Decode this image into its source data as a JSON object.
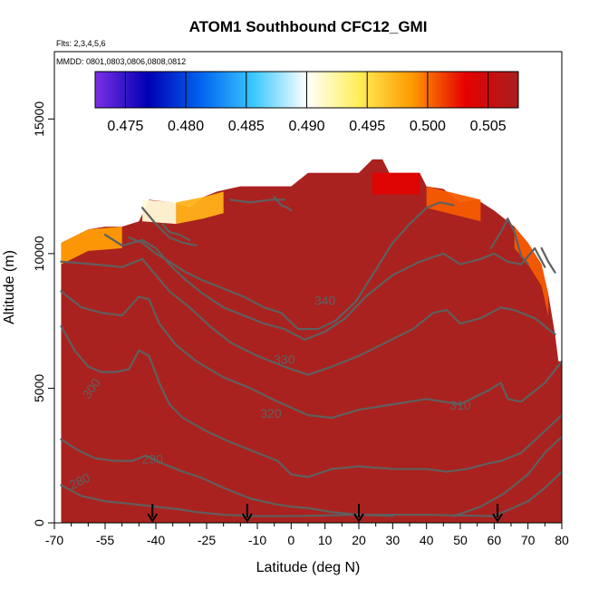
{
  "chart_data": {
    "type": "heatmap",
    "title": "ATOM1 Southbound CFC12_GMI",
    "notes": [
      "Flts: 2,3,4,5,6",
      "MMDD: 0801,0803,0806,0808,0812"
    ],
    "xlabel": "Latitude (deg N)",
    "ylabel": "Altitude (m)",
    "xlim": [
      -70,
      80
    ],
    "ylim": [
      0,
      17500
    ],
    "x_ticks": [
      -70,
      -55,
      -40,
      -25,
      -10,
      0,
      10,
      20,
      30,
      40,
      50,
      60,
      70,
      80
    ],
    "x_minor_ticks": [
      -65,
      -60,
      -50,
      -45,
      -35,
      -30,
      -20,
      -15,
      -5,
      5,
      15,
      25,
      35,
      45,
      55,
      65,
      75
    ],
    "y_ticks": [
      0,
      5000,
      10000,
      15000
    ],
    "colorbar": {
      "min": 0.4725,
      "max": 0.5075,
      "ticks": [
        0.475,
        0.48,
        0.485,
        0.49,
        0.495,
        0.5,
        0.505
      ],
      "tick_labels": [
        "0.475",
        "0.480",
        "0.485",
        "0.490",
        "0.495",
        "0.500",
        "0.505"
      ],
      "colors": [
        "#7b2fe6",
        "#0000b4",
        "#0064f0",
        "#3cc8ff",
        "#ffffff",
        "#ffee55",
        "#ff9900",
        "#e60000",
        "#a81e1e"
      ]
    },
    "field_color": "#a9221f",
    "data_extent": {
      "lat": [
        -68,
        80
      ],
      "top_altitude": [
        [
          -68,
          10400
        ],
        [
          -60,
          10900
        ],
        [
          -55,
          11000
        ],
        [
          -50,
          11000
        ],
        [
          -45,
          11200
        ],
        [
          -42,
          12000
        ],
        [
          -35,
          11900
        ],
        [
          -30,
          11700
        ],
        [
          -26,
          12100
        ],
        [
          -22,
          12300
        ],
        [
          -15,
          12500
        ],
        [
          -5,
          12500
        ],
        [
          0,
          12500
        ],
        [
          5,
          13000
        ],
        [
          20,
          13000
        ],
        [
          24,
          13500
        ],
        [
          27,
          13500
        ],
        [
          29,
          13000
        ],
        [
          38,
          13000
        ],
        [
          40,
          12500
        ],
        [
          45,
          12400
        ],
        [
          50,
          11900
        ],
        [
          55,
          12000
        ],
        [
          60,
          11600
        ],
        [
          66,
          11000
        ],
        [
          70,
          10400
        ],
        [
          74,
          9600
        ],
        [
          76,
          8500
        ],
        [
          78,
          7000
        ],
        [
          79,
          6000
        ],
        [
          80,
          6000
        ]
      ],
      "edge_bands": [
        {
          "lat_from": -68,
          "lat_to": -50,
          "top": [
            [
              -68,
              10400
            ],
            [
              -60,
              10900
            ],
            [
              -50,
              11000
            ]
          ],
          "value": 0.4985
        },
        {
          "lat_from": -44,
          "lat_to": -34,
          "top": [
            [
              -44,
              12000
            ],
            [
              -34,
              11900
            ]
          ],
          "value": 0.491
        },
        {
          "lat_from": -34,
          "lat_to": -20,
          "top": [
            [
              -34,
              11900
            ],
            [
              -26,
              12100
            ],
            [
              -20,
              12300
            ]
          ],
          "value": 0.4975
        },
        {
          "lat_from": 24,
          "lat_to": 38,
          "top": [
            [
              24,
              13000
            ],
            [
              38,
              13000
            ]
          ],
          "value": 0.5035
        },
        {
          "lat_from": 40,
          "lat_to": 56,
          "top": [
            [
              40,
              12500
            ],
            [
              56,
              12000
            ]
          ],
          "value": 0.5005
        },
        {
          "lat_from": 66,
          "lat_to": 76,
          "top": [
            [
              66,
              11000
            ],
            [
              70,
              10400
            ],
            [
              74,
              9600
            ],
            [
              76,
              8500
            ]
          ],
          "value": 0.5005
        }
      ]
    },
    "contours": [
      {
        "level": "280",
        "points": [
          [
            -68,
            1400
          ],
          [
            -62,
            1000
          ],
          [
            -55,
            800
          ],
          [
            -47,
            700
          ],
          [
            -40,
            600
          ],
          [
            -33,
            500
          ],
          [
            -28,
            400
          ],
          [
            -20,
            300
          ],
          [
            -10,
            250
          ],
          [
            0,
            250
          ],
          [
            20,
            300
          ],
          [
            40,
            300
          ],
          [
            60,
            250
          ],
          [
            70,
            800
          ],
          [
            75,
            1300
          ],
          [
            80,
            1900
          ]
        ],
        "label_at": [
          -62,
          1400
        ],
        "label_rot": -25
      },
      {
        "level": "290",
        "points": [
          [
            -68,
            3100
          ],
          [
            -63,
            2700
          ],
          [
            -58,
            2400
          ],
          [
            -52,
            2300
          ],
          [
            -47,
            2300
          ],
          [
            -43,
            2500
          ],
          [
            -38,
            2200
          ],
          [
            -32,
            1900
          ],
          [
            -27,
            1700
          ],
          [
            -20,
            1300
          ],
          [
            -12,
            900
          ],
          [
            -5,
            700
          ],
          [
            0,
            600
          ],
          [
            5,
            550
          ],
          [
            12,
            400
          ],
          [
            20,
            300
          ],
          [
            30,
            250
          ]
        ],
        "label_at": [
          -41,
          2200
        ],
        "label_rot": 0
      },
      {
        "level": "",
        "points": [
          [
            48,
            250
          ],
          [
            56,
            600
          ],
          [
            63,
            1100
          ],
          [
            70,
            1800
          ],
          [
            75,
            2600
          ],
          [
            80,
            3200
          ]
        ],
        "label_at": null,
        "label_rot": 0
      },
      {
        "level": "300",
        "points": [
          [
            -68,
            7300
          ],
          [
            -64,
            6400
          ],
          [
            -60,
            5800
          ],
          [
            -56,
            5600
          ],
          [
            -52,
            5600
          ],
          [
            -48,
            5700
          ],
          [
            -45,
            6400
          ],
          [
            -42,
            6200
          ],
          [
            -39,
            5200
          ],
          [
            -36,
            4400
          ],
          [
            -32,
            3900
          ],
          [
            -25,
            3400
          ],
          [
            -18,
            3000
          ],
          [
            -10,
            2600
          ],
          [
            -4,
            2300
          ],
          [
            0,
            1800
          ],
          [
            5,
            1700
          ],
          [
            12,
            2000
          ],
          [
            20,
            2100
          ],
          [
            30,
            2000
          ],
          [
            40,
            2000
          ],
          [
            46,
            1900
          ],
          [
            52,
            2000
          ],
          [
            58,
            2200
          ],
          [
            62,
            2300
          ],
          [
            68,
            2600
          ],
          [
            74,
            3300
          ],
          [
            80,
            4000
          ]
        ],
        "label_at": [
          -58,
          4900
        ],
        "label_rot": -55
      },
      {
        "level": "310",
        "points": [
          [
            -68,
            8600
          ],
          [
            -62,
            8000
          ],
          [
            -56,
            7800
          ],
          [
            -50,
            7700
          ],
          [
            -45,
            8400
          ],
          [
            -42,
            8300
          ],
          [
            -39,
            7400
          ],
          [
            -34,
            6600
          ],
          [
            -28,
            6000
          ],
          [
            -20,
            5400
          ],
          [
            -12,
            5000
          ],
          [
            -4,
            4500
          ],
          [
            5,
            4000
          ],
          [
            12,
            3900
          ],
          [
            20,
            4200
          ],
          [
            30,
            4400
          ],
          [
            40,
            4600
          ],
          [
            50,
            4400
          ],
          [
            58,
            4900
          ],
          [
            62,
            5200
          ],
          [
            64,
            4600
          ],
          [
            68,
            4500
          ],
          [
            75,
            5200
          ],
          [
            80,
            6000
          ]
        ],
        "label_at": [
          50,
          4200
        ],
        "label_rot": 0
      },
      {
        "level": "320",
        "points": [
          [
            -68,
            9700
          ],
          [
            -58,
            9600
          ],
          [
            -50,
            9500
          ],
          [
            -44,
            9800
          ],
          [
            -40,
            9200
          ],
          [
            -36,
            8600
          ],
          [
            -30,
            8000
          ],
          [
            -24,
            7300
          ],
          [
            -18,
            6700
          ],
          [
            -10,
            6200
          ],
          [
            -2,
            5800
          ],
          [
            5,
            5500
          ],
          [
            12,
            5800
          ],
          [
            20,
            6200
          ],
          [
            28,
            6700
          ],
          [
            36,
            7200
          ],
          [
            42,
            7800
          ],
          [
            46,
            7900
          ],
          [
            50,
            7400
          ],
          [
            56,
            7600
          ],
          [
            62,
            8000
          ],
          [
            66,
            7900
          ],
          [
            72,
            7600
          ],
          [
            78,
            7000
          ]
        ],
        "label_at": [
          -6,
          3900
        ],
        "label_rot": 0
      },
      {
        "level": "330",
        "points": [
          [
            -55,
            10700
          ],
          [
            -50,
            10300
          ],
          [
            -44,
            10500
          ],
          [
            -40,
            10200
          ],
          [
            -36,
            9600
          ],
          [
            -31,
            9000
          ],
          [
            -26,
            8500
          ],
          [
            -20,
            8000
          ],
          [
            -14,
            7700
          ],
          [
            -8,
            7400
          ],
          [
            -2,
            7200
          ],
          [
            4,
            6800
          ],
          [
            10,
            7100
          ],
          [
            16,
            7600
          ],
          [
            22,
            8400
          ],
          [
            30,
            9200
          ],
          [
            38,
            9700
          ],
          [
            45,
            10000
          ],
          [
            50,
            9600
          ],
          [
            56,
            9800
          ],
          [
            60,
            10000
          ],
          [
            64,
            9700
          ],
          [
            68,
            9600
          ],
          [
            72,
            10200
          ],
          [
            75,
            9500
          ]
        ],
        "label_at": [
          -2,
          5900
        ],
        "label_rot": 0
      },
      {
        "level": "340",
        "points": [
          [
            -48,
            10600
          ],
          [
            -44,
            10400
          ],
          [
            -40,
            10000
          ],
          [
            -36,
            9700
          ],
          [
            -31,
            9300
          ],
          [
            -26,
            9000
          ],
          [
            -20,
            8700
          ],
          [
            -14,
            8400
          ],
          [
            -8,
            8000
          ],
          [
            -3,
            7800
          ],
          [
            2,
            7200
          ],
          [
            8,
            7200
          ],
          [
            13,
            7500
          ],
          [
            19,
            8200
          ],
          [
            24,
            9200
          ],
          [
            30,
            10400
          ],
          [
            35,
            11100
          ],
          [
            40,
            11700
          ],
          [
            44,
            11900
          ],
          [
            48,
            11800
          ]
        ],
        "label_at": [
          10,
          8100
        ],
        "label_rot": 0
      },
      {
        "level": "",
        "points": [
          [
            -44,
            11700
          ],
          [
            -40,
            11100
          ],
          [
            -36,
            10600
          ],
          [
            -32,
            10400
          ],
          [
            -28,
            10300
          ]
        ],
        "label_at": null,
        "label_rot": 0
      },
      {
        "level": "",
        "points": [
          [
            -38,
            11100
          ],
          [
            -36,
            10800
          ],
          [
            -33,
            10700
          ],
          [
            -30,
            10500
          ]
        ],
        "label_at": null,
        "label_rot": 0
      },
      {
        "level": "",
        "points": [
          [
            -18,
            12000
          ],
          [
            -12,
            11900
          ],
          [
            -6,
            12000
          ],
          [
            -2,
            12000
          ]
        ],
        "label_at": null,
        "label_rot": 0
      },
      {
        "level": "",
        "points": [
          [
            -5,
            12100
          ],
          [
            -3,
            11800
          ],
          [
            -1,
            11700
          ],
          [
            0,
            11600
          ]
        ],
        "label_at": null,
        "label_rot": 0
      },
      {
        "level": "",
        "points": [
          [
            59,
            10200
          ],
          [
            62,
            10800
          ],
          [
            64,
            11300
          ],
          [
            66,
            10800
          ],
          [
            68,
            9900
          ],
          [
            70,
            9600
          ]
        ],
        "label_at": null,
        "label_rot": 0
      },
      {
        "level": "",
        "points": [
          [
            74,
            10200
          ],
          [
            76,
            9700
          ],
          [
            78,
            9300
          ]
        ],
        "label_at": null,
        "label_rot": 0
      }
    ],
    "flight_arrows_lat": [
      -41,
      -13,
      20,
      61
    ]
  }
}
